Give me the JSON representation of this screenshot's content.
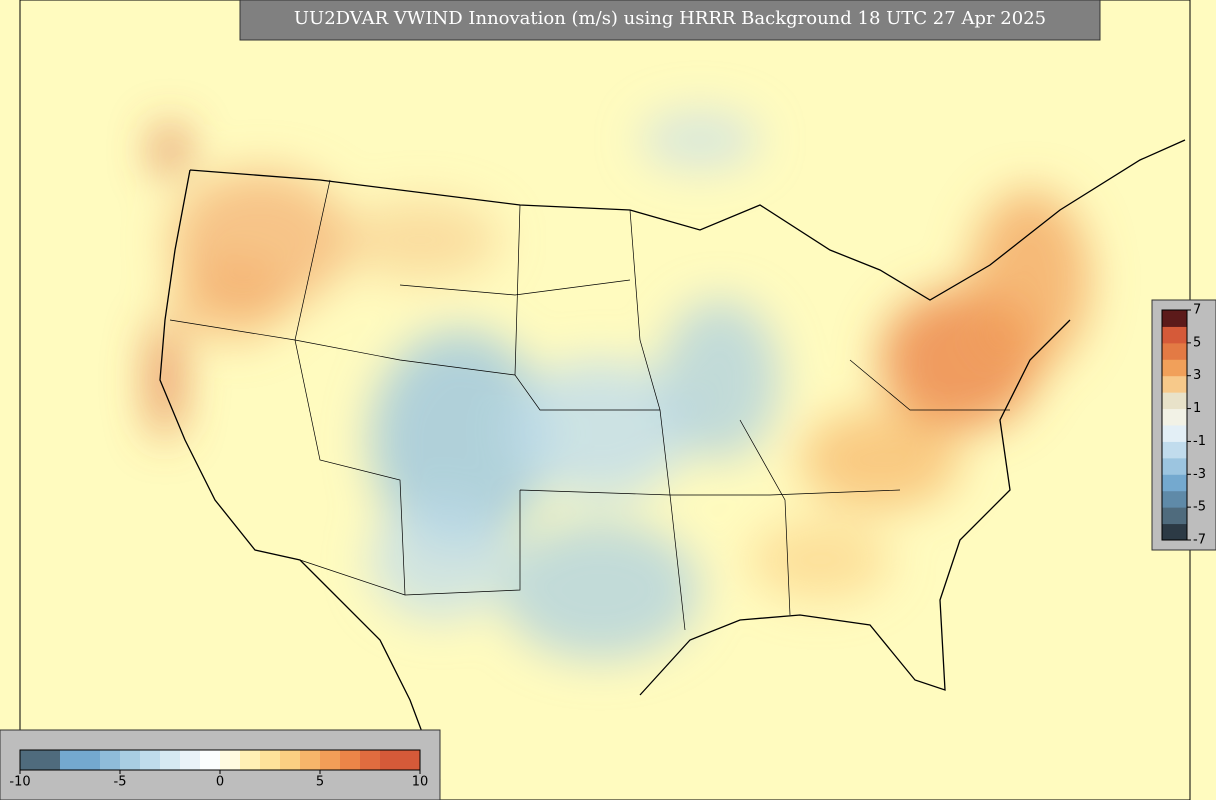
{
  "title": "UU2DVAR VWIND Innovation (m/s) using HRRR Background 18 UTC 27 Apr 2025",
  "colorbar_bottom": {
    "range": [
      -10,
      10
    ],
    "ticks": [
      -10,
      -5,
      0,
      5,
      10
    ],
    "colors": [
      "#4f6b7d",
      "#4f6b7d",
      "#74a9cf",
      "#74a9cf",
      "#8fbcd9",
      "#a8cde3",
      "#bfdcec",
      "#d6e9f3",
      "#e9f3f8",
      "#fbfdfd",
      "#fffbdf",
      "#fff0b5",
      "#fde29a",
      "#fbcf82",
      "#f7b56a",
      "#f29e58",
      "#ec8548",
      "#e06c3f",
      "#d55a39",
      "#d55a39"
    ]
  },
  "colorbar_right": {
    "range": [
      -7,
      7
    ],
    "ticks": [
      7,
      5,
      3,
      1,
      -1,
      -3,
      -5,
      -7
    ],
    "colors": [
      "#2c3a45",
      "#4f6b7d",
      "#5f8aa8",
      "#74a9cf",
      "#9cc5e0",
      "#c1dced",
      "#e3eff6",
      "#f2f2e6",
      "#e8e2c9",
      "#f7c98a",
      "#f1a05a",
      "#e37a44",
      "#d55a39",
      "#5c1a1a"
    ]
  }
}
